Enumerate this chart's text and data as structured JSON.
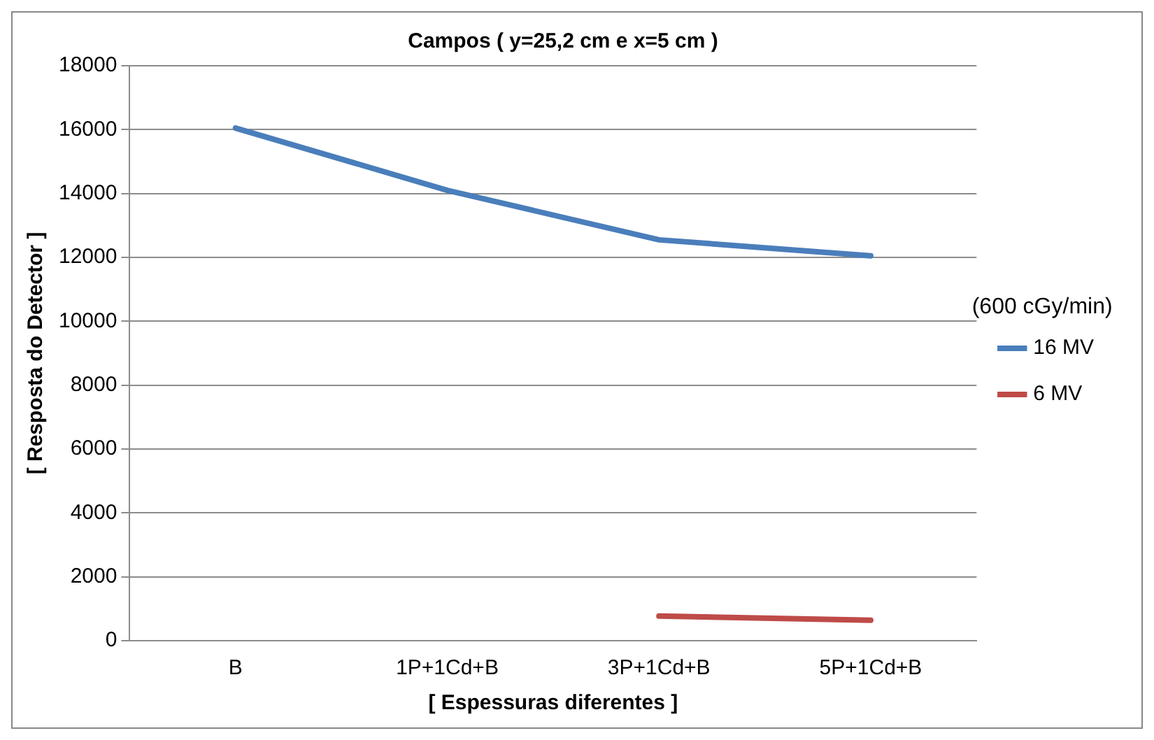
{
  "chart_data": {
    "type": "line",
    "title": "Campos ( y=25,2 cm e x=5 cm )",
    "xlabel": "[ Espessuras diferentes ]",
    "ylabel": "[ Resposta do Detector ]",
    "legend_title": "(600 cGy/min)",
    "categories": [
      "B",
      "1P+1Cd+B",
      "3P+1Cd+B",
      "5P+1Cd+B"
    ],
    "series": [
      {
        "name": "16 MV",
        "color": "#4a7ebb",
        "values": [
          16050,
          14100,
          12550,
          12050
        ]
      },
      {
        "name": "6 MV",
        "color": "#be4b48",
        "values": [
          null,
          null,
          770,
          640
        ]
      }
    ],
    "ylim": [
      0,
      18000
    ],
    "yticks": [
      0,
      2000,
      4000,
      6000,
      8000,
      10000,
      12000,
      14000,
      16000,
      18000
    ],
    "grid": "y",
    "legend": "right",
    "marker": "none",
    "line_style": "solid"
  }
}
